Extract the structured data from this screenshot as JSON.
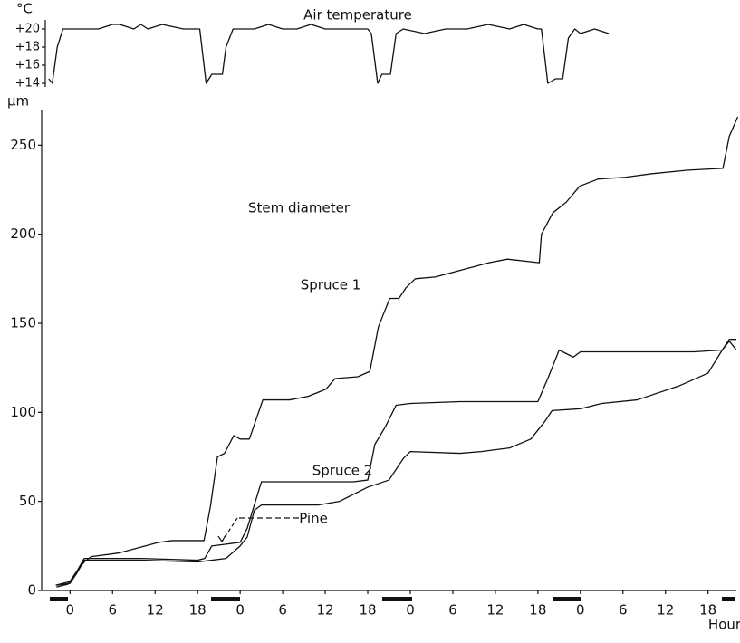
{
  "chart_data": [
    {
      "type": "line",
      "title": "Air temperature",
      "y_label": "°C",
      "xlim": [
        -4,
        94
      ],
      "ylim": [
        13.8,
        21
      ],
      "yticks": [
        {
          "value": 14,
          "label": "+14"
        },
        {
          "value": 16,
          "label": "+16"
        },
        {
          "value": 18,
          "label": "+18"
        },
        {
          "value": 20,
          "label": "+20"
        }
      ],
      "series": [
        {
          "color": "#111111",
          "x": [
            -3,
            -2.5,
            -1.8,
            -1,
            1,
            4,
            6,
            7,
            9,
            10,
            11,
            13,
            16,
            18.3,
            19.2,
            20,
            21.5,
            22,
            23,
            24,
            26,
            28,
            30,
            32,
            34,
            36,
            38,
            40,
            42,
            42.5,
            43.4,
            44,
            45.2,
            46,
            47,
            50,
            53,
            56,
            59,
            62,
            64,
            66,
            66.5,
            67.4,
            68.5,
            69.5,
            70.3,
            71.2,
            72,
            74,
            76
          ],
          "values": [
            14.5,
            14,
            18,
            20,
            20,
            20,
            20.5,
            20.5,
            20,
            20.5,
            20,
            20.5,
            20,
            20,
            14,
            15,
            15,
            18,
            20,
            20,
            20,
            20.5,
            20,
            20,
            20.5,
            20,
            20,
            20,
            20,
            19.5,
            14,
            15,
            15,
            19.5,
            20,
            19.5,
            20,
            20,
            20.5,
            20,
            20.5,
            20,
            20,
            14,
            14.5,
            14.5,
            19,
            20,
            19.5,
            20,
            19.5
          ]
        }
      ]
    },
    {
      "type": "line",
      "title": "Stem diameter",
      "y_label": "µm",
      "x_label": "Hour",
      "xlim": [
        -4,
        94
      ],
      "ylim": [
        0,
        270
      ],
      "xticks": [
        {
          "value": 0,
          "label": "0"
        },
        {
          "value": 6,
          "label": "6"
        },
        {
          "value": 12,
          "label": "12"
        },
        {
          "value": 18,
          "label": "18"
        },
        {
          "value": 24,
          "label": "0"
        },
        {
          "value": 30,
          "label": "6"
        },
        {
          "value": 36,
          "label": "12"
        },
        {
          "value": 42,
          "label": "18"
        },
        {
          "value": 48,
          "label": "0"
        },
        {
          "value": 54,
          "label": "6"
        },
        {
          "value": 60,
          "label": "12"
        },
        {
          "value": 66,
          "label": "18"
        },
        {
          "value": 72,
          "label": "0"
        },
        {
          "value": 78,
          "label": "6"
        },
        {
          "value": 84,
          "label": "12"
        },
        {
          "value": 90,
          "label": "18"
        }
      ],
      "yticks": [
        0,
        50,
        100,
        150,
        200,
        250
      ],
      "series": [
        {
          "name": "Spruce 1",
          "color": "#111111",
          "x": [
            -1.9,
            -0.3,
            1,
            2,
            3,
            6.8,
            10.6,
            12.5,
            14.4,
            18.9,
            19.8,
            20.8,
            21.8,
            23.1,
            24,
            25.3,
            27.2,
            31,
            33.6,
            36.1,
            37.4,
            40.6,
            42.3,
            43.5,
            45.1,
            46.4,
            47.4,
            48.7,
            51.5,
            55.3,
            59.1,
            61.7,
            66.2,
            66.5,
            68.1,
            70,
            71.9,
            74.5,
            78.3,
            82.1,
            87.2,
            92.1,
            93,
            94.2
          ],
          "values": [
            2,
            3.5,
            11,
            16,
            19,
            21,
            25,
            27,
            28,
            28,
            47,
            75,
            77,
            87,
            85,
            85,
            107,
            107,
            109,
            113,
            119,
            120,
            123,
            148,
            164,
            164,
            170,
            175,
            176,
            180,
            184,
            186,
            184,
            200,
            212,
            218,
            227,
            231,
            232,
            234,
            236,
            237,
            255,
            266
          ]
        },
        {
          "name": "Spruce 2",
          "color": "#111111",
          "x": [
            -2,
            0,
            1,
            2,
            4,
            10,
            18,
            19,
            20,
            22,
            24,
            25,
            26,
            27,
            30,
            40,
            42,
            43,
            44.5,
            46,
            48,
            55,
            60,
            66,
            67.5,
            69,
            71,
            72,
            80,
            88,
            92,
            93,
            94
          ],
          "values": [
            3,
            5,
            11,
            18,
            18,
            18,
            17,
            18,
            25,
            26,
            27,
            35,
            48,
            61,
            61,
            61,
            62,
            82,
            92,
            104,
            105,
            106,
            106,
            106,
            120,
            135,
            131,
            134,
            134,
            134,
            135,
            141,
            141
          ]
        },
        {
          "name": "Pine",
          "color": "#111111",
          "x": [
            -2,
            0,
            1,
            2,
            4,
            10,
            18,
            20,
            22,
            24,
            25,
            26,
            27,
            35,
            38,
            42,
            45,
            47,
            48,
            55,
            58,
            62,
            65,
            67,
            68,
            72,
            75,
            80,
            86,
            90,
            92,
            93,
            94
          ],
          "values": [
            3,
            4,
            10,
            17,
            17,
            17,
            16,
            17,
            18,
            25,
            30,
            45,
            48,
            48,
            50,
            58,
            62,
            74,
            78,
            77,
            78,
            80,
            85,
            95,
            101,
            102,
            105,
            107,
            115,
            122,
            135,
            140,
            135
          ]
        }
      ]
    }
  ]
}
